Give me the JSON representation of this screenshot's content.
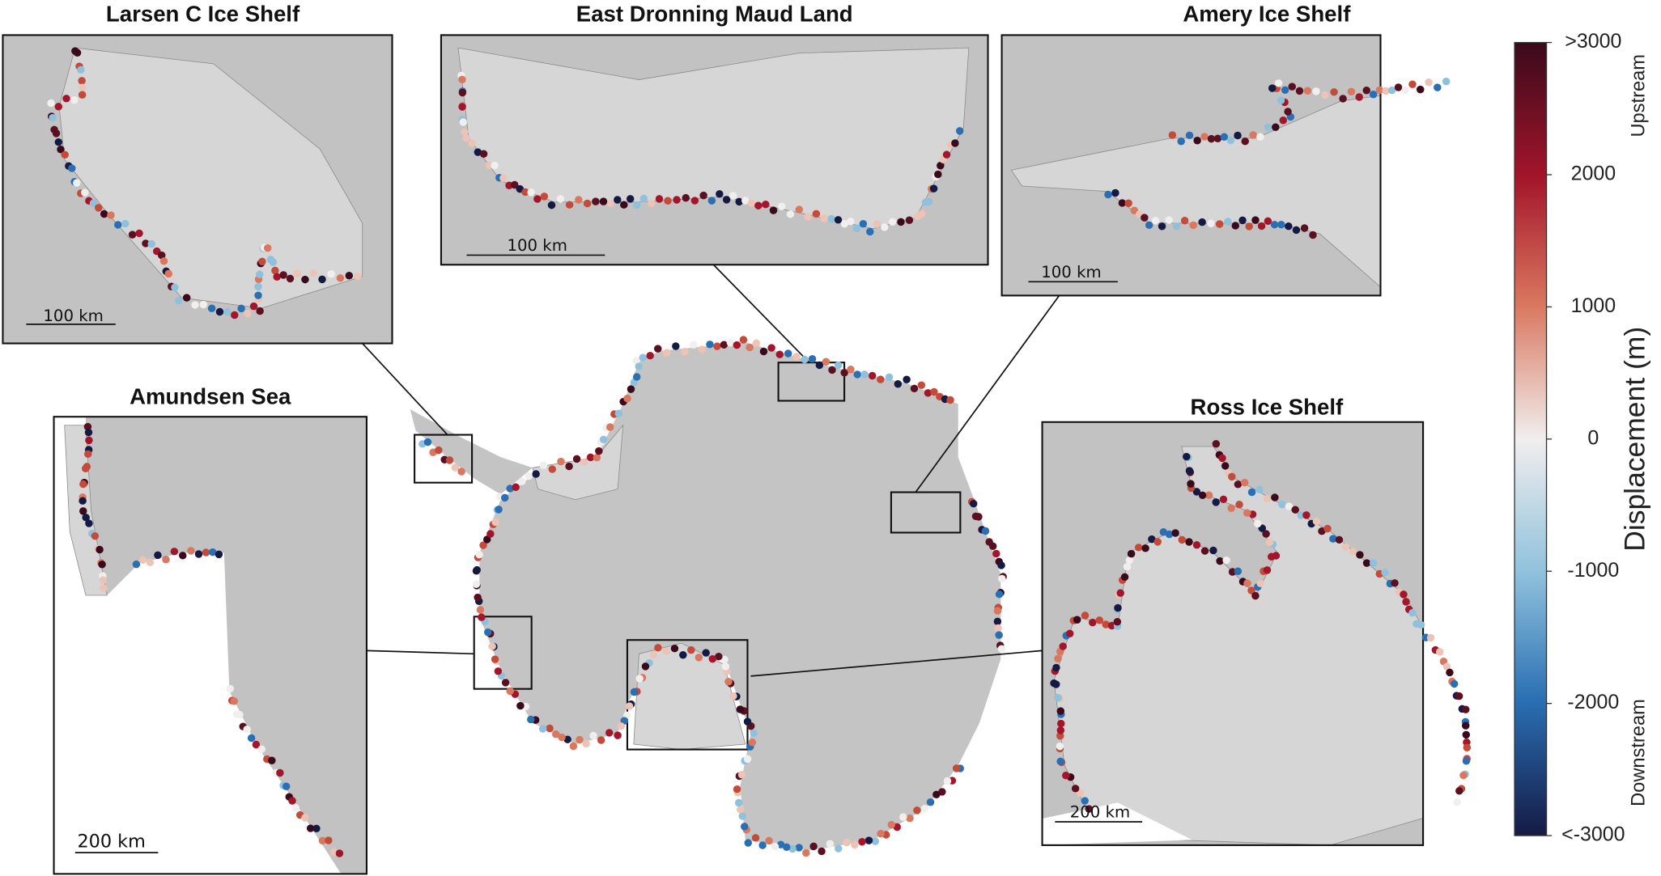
{
  "panels": [
    {
      "title": "Larsen C Ice Shelf",
      "scale_label": "100 km"
    },
    {
      "title": "East Dronning Maud Land",
      "scale_label": "100 km"
    },
    {
      "title": "Amery Ice Shelf",
      "scale_label": "100 km"
    },
    {
      "title": "Amundsen Sea",
      "scale_label": "200 km"
    },
    {
      "title": "Ross Ice Shelf",
      "scale_label": "200 km"
    }
  ],
  "colorbar": {
    "label": "Displacement (m)",
    "upper_note": "Upstream",
    "lower_note": "Downstream",
    "lim": [
      -3000,
      3000
    ],
    "ticks": [
      {
        "value": 3000,
        "label": ">3000"
      },
      2000,
      1000,
      0,
      -1000,
      -2000,
      {
        "value": -3000,
        "label": "<-3000"
      }
    ]
  }
}
